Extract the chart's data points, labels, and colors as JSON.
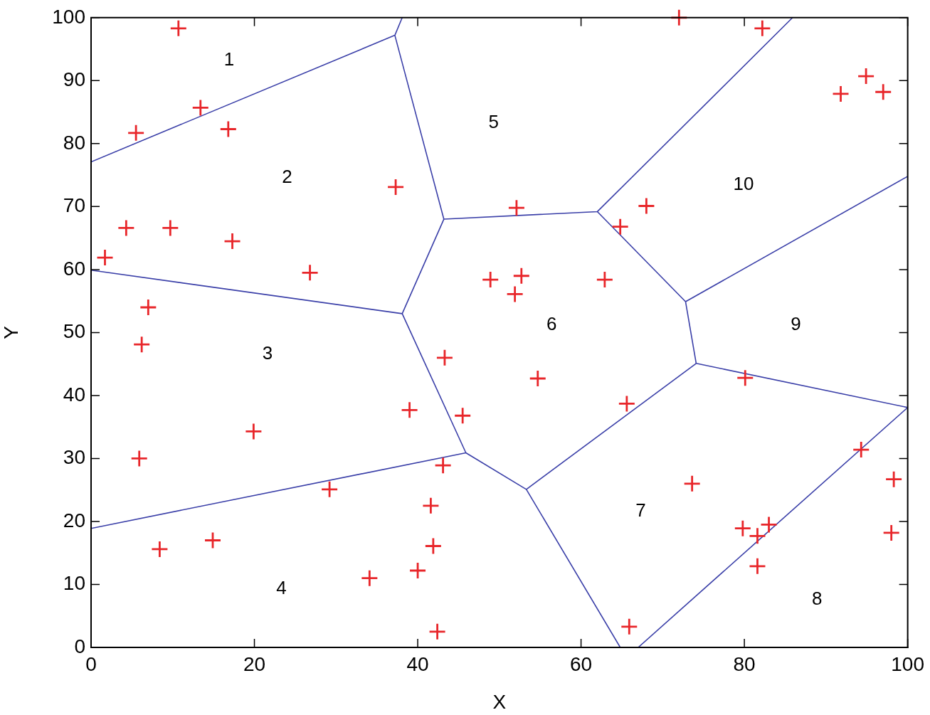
{
  "chart_data": {
    "type": "scatter",
    "xlabel": "X",
    "ylabel": "Y",
    "xlim": [
      0,
      100
    ],
    "ylim": [
      0,
      100
    ],
    "xticks": [
      0,
      20,
      40,
      60,
      80,
      100
    ],
    "yticks": [
      0,
      10,
      20,
      30,
      40,
      50,
      60,
      70,
      80,
      90,
      100
    ],
    "grid": false,
    "legend": false,
    "marker": "cross",
    "series": [
      {
        "color": "#e8262a",
        "x": [
          10.7,
          13.4,
          5.5,
          16.8,
          37.3,
          52.1,
          4.3,
          9.7,
          17.3,
          1.7,
          26.8,
          7.0,
          6.2,
          5.9,
          19.9,
          39.0,
          43.3,
          45.5,
          43.1,
          29.2,
          41.6,
          41.9,
          14.9,
          8.4,
          34.1,
          40.0,
          42.4,
          48.9,
          52.7,
          51.9,
          62.9,
          54.7,
          64.8,
          68.0,
          72.0,
          82.2,
          91.8,
          94.9,
          97.0,
          65.6,
          73.6,
          79.8,
          81.6,
          83.0,
          81.6,
          80.1,
          94.3,
          98.3,
          98.0,
          65.9
        ],
        "values": [
          98.3,
          85.7,
          81.7,
          82.3,
          73.1,
          69.8,
          66.6,
          66.6,
          64.5,
          61.9,
          59.5,
          54.0,
          48.1,
          30.0,
          34.3,
          37.7,
          46.0,
          36.8,
          28.9,
          25.1,
          22.5,
          16.1,
          17.0,
          15.6,
          11.0,
          12.2,
          2.5,
          58.4,
          59.0,
          56.1,
          58.4,
          42.7,
          66.8,
          70.1,
          100,
          98.3,
          87.9,
          90.7,
          88.2,
          38.7,
          26.0,
          18.9,
          17.7,
          19.5,
          12.9,
          42.8,
          31.4,
          26.7,
          18.2,
          3.3
        ]
      },
      {
        "type": "line",
        "color": "#3a3fa8",
        "marker": "none",
        "x": [
          0,
          37.2,
          38.1
        ],
        "values": [
          77.1,
          97.2,
          100
        ]
      },
      {
        "type": "line",
        "color": "#3a3fa8",
        "marker": "none",
        "x": [
          37.2,
          43.2,
          62.0,
          85.9
        ],
        "values": [
          97.2,
          68.0,
          69.2,
          100
        ]
      },
      {
        "type": "line",
        "color": "#3a3fa8",
        "marker": "none",
        "x": [
          62.0,
          72.8,
          100
        ],
        "values": [
          69.2,
          54.9,
          74.8
        ]
      },
      {
        "type": "line",
        "color": "#3a3fa8",
        "marker": "none",
        "x": [
          72.8,
          74.1,
          100,
          67.0
        ],
        "values": [
          54.9,
          45.1,
          38.1,
          0
        ]
      },
      {
        "type": "line",
        "color": "#3a3fa8",
        "marker": "none",
        "x": [
          43.2,
          38.1,
          0
        ],
        "values": [
          68.0,
          53.0,
          59.9
        ]
      },
      {
        "type": "line",
        "color": "#3a3fa8",
        "marker": "none",
        "x": [
          38.1,
          45.9,
          0
        ],
        "values": [
          53.0,
          30.9,
          18.9
        ]
      },
      {
        "type": "line",
        "color": "#3a3fa8",
        "marker": "none",
        "x": [
          45.9,
          53.3,
          64.8
        ],
        "values": [
          30.9,
          25.1,
          0
        ]
      },
      {
        "type": "line",
        "color": "#3a3fa8",
        "marker": "none",
        "x": [
          53.3,
          74.1
        ],
        "values": [
          25.1,
          45.1
        ]
      }
    ],
    "annotations": [
      "1",
      "2",
      "3",
      "4",
      "5",
      "6",
      "7",
      "8",
      "9",
      "10"
    ]
  }
}
